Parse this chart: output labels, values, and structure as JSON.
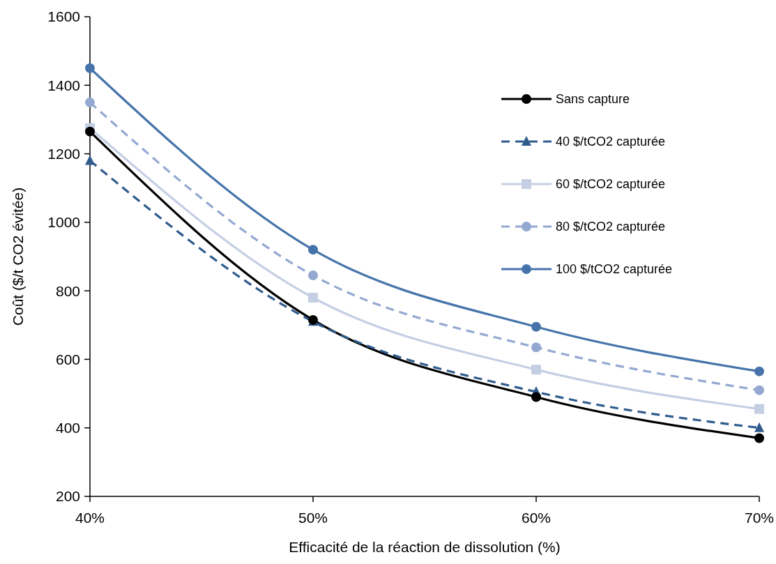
{
  "chart_data": {
    "type": "line",
    "xlabel": "Efficacité de la réaction de dissolution (%)",
    "ylabel": "Coût ($/t CO2 évitée)",
    "categories": [
      "40%",
      "50%",
      "60%",
      "70%"
    ],
    "ylim": [
      200,
      1600
    ],
    "yticks": [
      200,
      400,
      600,
      800,
      1000,
      1200,
      1400,
      1600
    ],
    "grid": false,
    "legend": "top right",
    "series": [
      {
        "name": "Sans capture",
        "color": "#000000",
        "marker": "circle",
        "line_style": "solid",
        "values": [
          1265,
          715,
          490,
          370
        ]
      },
      {
        "name": "40 $/tCO2 capturée",
        "color": "#2f5b8d",
        "marker": "triangle",
        "line_style": "dashed",
        "values": [
          1180,
          710,
          505,
          400
        ]
      },
      {
        "name": "60 $/tCO2 capturée",
        "color": "#c5cfe4",
        "marker": "square",
        "line_style": "solid",
        "values": [
          1275,
          780,
          570,
          455
        ]
      },
      {
        "name": "80 $/tCO2 capturée",
        "color": "#94a8d1",
        "marker": "circle",
        "line_style": "dashed",
        "values": [
          1350,
          845,
          635,
          510
        ]
      },
      {
        "name": "100 $/tCO2 capturée",
        "color": "#4674aa",
        "marker": "circle",
        "line_style": "solid",
        "values": [
          1450,
          920,
          695,
          565
        ]
      }
    ]
  }
}
